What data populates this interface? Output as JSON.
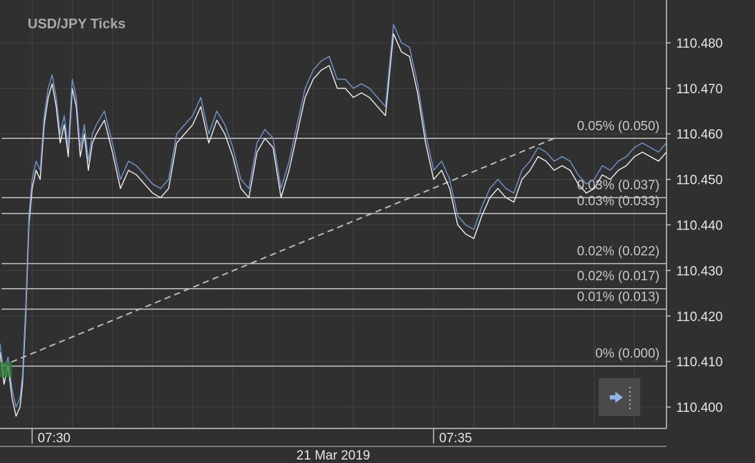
{
  "window": {
    "title": "USD/JPY  Ticks",
    "date_label": "21 Mar 2019"
  },
  "colors": {
    "background": "#303030",
    "grid": "#444444",
    "bid_line": "#e8e8e8",
    "ask_line": "#6f93c8",
    "fib_line": "#c8c8c8",
    "trend_line": "#bdbdbd",
    "marker": "#2e7d32"
  },
  "scroll_button": {
    "icon": "arrow-right-icon"
  },
  "chart_data": {
    "type": "line",
    "title": "USD/JPY  Ticks",
    "xlabel": "",
    "ylabel": "",
    "y_ticks": [
      "110.480",
      "110.470",
      "110.460",
      "110.450",
      "110.440",
      "110.430",
      "110.420",
      "110.410",
      "110.400"
    ],
    "y_tick_values": [
      110.48,
      110.47,
      110.46,
      110.45,
      110.44,
      110.43,
      110.42,
      110.41,
      110.4
    ],
    "ylim": [
      110.3953,
      110.4894
    ],
    "x_ticks": [
      {
        "label": "07:30",
        "t": 30.0
      },
      {
        "label": "07:35",
        "t": 35.0
      }
    ],
    "xlim": [
      29.6,
      37.9
    ],
    "grid": true,
    "series": [
      {
        "key": "bid",
        "x": [
          29.6,
          29.65,
          29.7,
          29.75,
          29.8,
          29.85,
          29.88,
          29.92,
          29.96,
          30.0,
          30.05,
          30.1,
          30.15,
          30.2,
          30.25,
          30.3,
          30.35,
          30.4,
          30.45,
          30.5,
          30.55,
          30.6,
          30.65,
          30.7,
          30.75,
          30.8,
          30.9,
          31.0,
          31.1,
          31.2,
          31.3,
          31.4,
          31.5,
          31.6,
          31.7,
          31.8,
          31.9,
          32.0,
          32.1,
          32.2,
          32.3,
          32.4,
          32.5,
          32.6,
          32.7,
          32.8,
          32.9,
          33.0,
          33.1,
          33.2,
          33.3,
          33.4,
          33.5,
          33.6,
          33.7,
          33.8,
          33.9,
          34.0,
          34.1,
          34.2,
          34.3,
          34.4,
          34.5,
          34.6,
          34.7,
          34.8,
          34.9,
          35.0,
          35.1,
          35.2,
          35.3,
          35.4,
          35.5,
          35.6,
          35.7,
          35.8,
          35.9,
          36.0,
          36.1,
          36.2,
          36.3,
          36.4,
          36.5,
          36.6,
          36.7,
          36.8,
          36.9,
          37.0,
          37.1,
          37.2,
          37.3,
          37.4,
          37.5,
          37.6,
          37.7,
          37.8,
          37.9
        ],
        "y": [
          110.412,
          110.405,
          110.409,
          110.402,
          110.398,
          110.4,
          110.405,
          110.42,
          110.44,
          110.448,
          110.452,
          110.45,
          110.462,
          110.468,
          110.471,
          110.466,
          110.458,
          110.462,
          110.455,
          110.47,
          110.466,
          110.455,
          110.46,
          110.452,
          110.458,
          110.46,
          110.463,
          110.456,
          110.448,
          110.452,
          110.451,
          110.449,
          110.447,
          110.446,
          110.448,
          110.458,
          110.46,
          110.462,
          110.466,
          110.458,
          110.463,
          110.46,
          110.455,
          110.448,
          110.446,
          110.456,
          110.459,
          110.457,
          110.446,
          110.452,
          110.46,
          110.468,
          110.472,
          110.474,
          110.475,
          110.47,
          110.47,
          110.468,
          110.469,
          110.468,
          110.466,
          110.464,
          110.482,
          110.478,
          110.477,
          110.469,
          110.458,
          110.45,
          110.452,
          110.448,
          110.44,
          110.438,
          110.437,
          110.442,
          110.446,
          110.448,
          110.446,
          110.445,
          110.45,
          110.452,
          110.455,
          110.454,
          110.452,
          110.453,
          110.452,
          110.449,
          110.447,
          110.448,
          110.451,
          110.45,
          110.452,
          110.453,
          110.455,
          110.456,
          110.455,
          110.454,
          110.456
        ]
      },
      {
        "key": "ask",
        "x": [
          29.6,
          29.65,
          29.7,
          29.75,
          29.8,
          29.85,
          29.88,
          29.92,
          29.96,
          30.0,
          30.05,
          30.1,
          30.15,
          30.2,
          30.25,
          30.3,
          30.35,
          30.4,
          30.45,
          30.5,
          30.55,
          30.6,
          30.65,
          30.7,
          30.75,
          30.8,
          30.9,
          31.0,
          31.1,
          31.2,
          31.3,
          31.4,
          31.5,
          31.6,
          31.7,
          31.8,
          31.9,
          32.0,
          32.1,
          32.2,
          32.3,
          32.4,
          32.5,
          32.6,
          32.7,
          32.8,
          32.9,
          33.0,
          33.1,
          33.2,
          33.3,
          33.4,
          33.5,
          33.6,
          33.7,
          33.8,
          33.9,
          34.0,
          34.1,
          34.2,
          34.3,
          34.4,
          34.5,
          34.6,
          34.7,
          34.8,
          34.9,
          35.0,
          35.1,
          35.2,
          35.3,
          35.4,
          35.5,
          35.6,
          35.7,
          35.8,
          35.9,
          36.0,
          36.1,
          36.2,
          36.3,
          36.4,
          36.5,
          36.6,
          36.7,
          36.8,
          36.9,
          37.0,
          37.1,
          37.2,
          37.3,
          37.4,
          37.5,
          37.6,
          37.7,
          37.8,
          37.9
        ],
        "y": [
          110.414,
          110.407,
          110.411,
          110.404,
          110.4,
          110.402,
          110.407,
          110.422,
          110.442,
          110.45,
          110.454,
          110.452,
          110.464,
          110.47,
          110.473,
          110.468,
          110.46,
          110.464,
          110.457,
          110.472,
          110.468,
          110.457,
          110.462,
          110.454,
          110.46,
          110.462,
          110.465,
          110.458,
          110.45,
          110.454,
          110.453,
          110.451,
          110.449,
          110.448,
          110.45,
          110.46,
          110.462,
          110.464,
          110.468,
          110.46,
          110.465,
          110.462,
          110.457,
          110.45,
          110.448,
          110.458,
          110.461,
          110.459,
          110.448,
          110.454,
          110.462,
          110.47,
          110.474,
          110.476,
          110.477,
          110.472,
          110.472,
          110.47,
          110.471,
          110.47,
          110.468,
          110.466,
          110.484,
          110.48,
          110.479,
          110.471,
          110.46,
          110.452,
          110.454,
          110.45,
          110.442,
          110.44,
          110.439,
          110.444,
          110.448,
          110.45,
          110.448,
          110.447,
          110.452,
          110.454,
          110.457,
          110.456,
          110.454,
          110.455,
          110.454,
          110.451,
          110.449,
          110.45,
          110.453,
          110.452,
          110.454,
          110.455,
          110.457,
          110.458,
          110.457,
          110.456,
          110.458
        ]
      }
    ],
    "fibonacci": {
      "start": {
        "t": 29.62,
        "price": 110.409
      },
      "end": {
        "t": 36.5,
        "price": 110.459
      },
      "levels": [
        {
          "label": "0.05% (0.050)",
          "price": 110.459
        },
        {
          "label": "0.03% (0.037)",
          "price": 110.446
        },
        {
          "label": "0.03% (0.033)",
          "price": 110.4425
        },
        {
          "label": "0.02% (0.022)",
          "price": 110.4315
        },
        {
          "label": "0.02% (0.017)",
          "price": 110.426
        },
        {
          "label": "0.01% (0.013)",
          "price": 110.4215
        },
        {
          "label": "0% (0.000)",
          "price": 110.409
        }
      ]
    }
  }
}
